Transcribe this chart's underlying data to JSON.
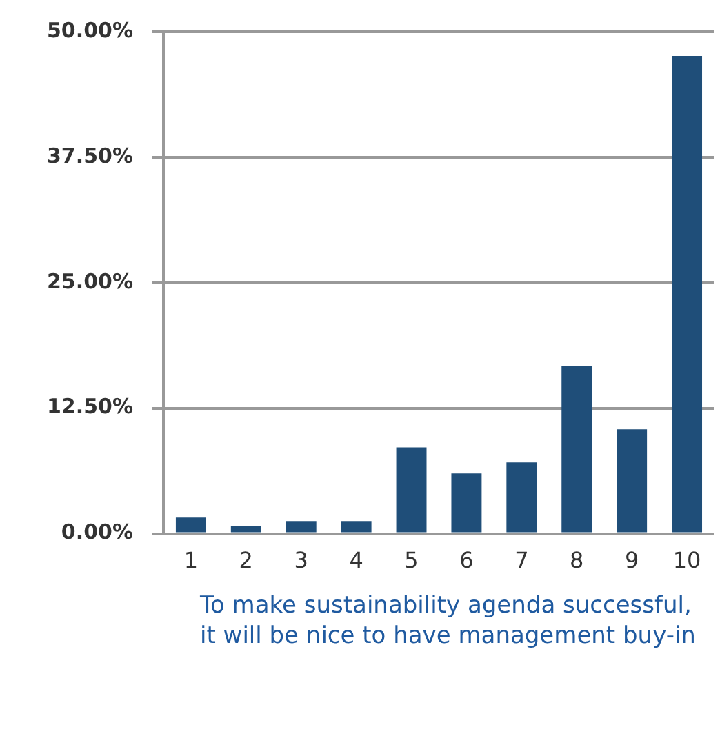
{
  "chart_data": {
    "type": "bar",
    "categories": [
      "1",
      "2",
      "3",
      "4",
      "5",
      "6",
      "7",
      "8",
      "9",
      "10"
    ],
    "values": [
      1.6,
      0.8,
      1.2,
      1.2,
      8.6,
      6.0,
      7.1,
      16.7,
      10.4,
      47.6
    ],
    "color": "#1f4e79",
    "ylim": [
      0,
      50
    ],
    "yticks": [
      {
        "value": 0,
        "label": "0.00%"
      },
      {
        "value": 12.5,
        "label": "12.50%"
      },
      {
        "value": 25,
        "label": "25.00%"
      },
      {
        "value": 37.5,
        "label": "37.50%"
      },
      {
        "value": 50,
        "label": "50.00%"
      }
    ],
    "grid": "y",
    "annotations": [
      "To make sustainability agenda successful, it will be nice to have management buy-in"
    ]
  }
}
